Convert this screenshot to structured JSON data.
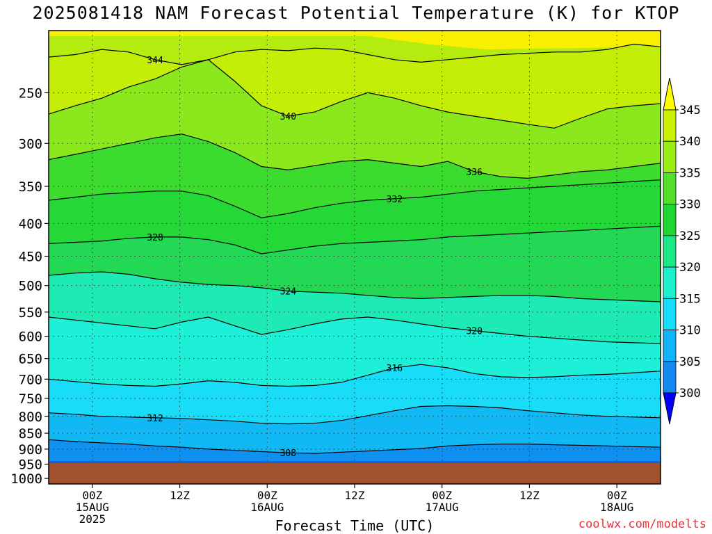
{
  "title": "2025081418 NAM Forecast Potential Temperature (K) for KTOP",
  "xaxis_title": "Forecast Time (UTC)",
  "credit": "coolwx.com/modelts",
  "chart_data": {
    "type": "contour",
    "title": "2025081418 NAM Forecast Potential Temperature (K) for KTOP",
    "xlabel": "Forecast Time (UTC)",
    "ylabel": "",
    "x_ticks": [
      {
        "hour": 6,
        "label": [
          "00Z",
          "15AUG",
          "2025"
        ]
      },
      {
        "hour": 18,
        "label": [
          "12Z"
        ]
      },
      {
        "hour": 30,
        "label": [
          "00Z",
          "16AUG"
        ]
      },
      {
        "hour": 42,
        "label": [
          "12Z"
        ]
      },
      {
        "hour": 54,
        "label": [
          "00Z",
          "17AUG"
        ]
      },
      {
        "hour": 66,
        "label": [
          "12Z"
        ]
      },
      {
        "hour": 78,
        "label": [
          "00Z",
          "18AUG"
        ]
      }
    ],
    "x_range_hours": [
      0,
      84
    ],
    "y_ticks": [
      250,
      300,
      350,
      400,
      450,
      500,
      550,
      600,
      650,
      700,
      750,
      800,
      850,
      900,
      950,
      1000
    ],
    "y_range_hPa": [
      200,
      1020
    ],
    "grid": true,
    "colorbar": {
      "labels": [
        345,
        340,
        335,
        330,
        325,
        320,
        315,
        310,
        305,
        300
      ],
      "colors": [
        "#ffff00",
        "#c8f000",
        "#9cec16",
        "#55e02a",
        "#21d832",
        "#1de888",
        "#1cf0cc",
        "#18dcfc",
        "#10b4f8",
        "#1288f0",
        "#0a5ae4",
        "#0000ff"
      ]
    },
    "levels": [
      {
        "theta": 344,
        "p": [
          220,
          218,
          214,
          216,
          222,
          226,
          222,
          216,
          214,
          215,
          213,
          214,
          218,
          222,
          224,
          222,
          220,
          218,
          217,
          216,
          216,
          214,
          210,
          212
        ]
      },
      {
        "theta": 340,
        "p": [
          270,
          262,
          255,
          245,
          238,
          228,
          222,
          240,
          262,
          272,
          268,
          258,
          250,
          255,
          262,
          268,
          272,
          276,
          280,
          284,
          274,
          265,
          262,
          260
        ]
      },
      {
        "theta": 336,
        "p": [
          318,
          312,
          306,
          300,
          294,
          290,
          298,
          310,
          326,
          330,
          325,
          320,
          318,
          322,
          326,
          320,
          332,
          338,
          340,
          336,
          332,
          330,
          326,
          322
        ]
      },
      {
        "theta": 332,
        "p": [
          368,
          364,
          360,
          358,
          356,
          356,
          362,
          376,
          392,
          386,
          378,
          372,
          368,
          366,
          364,
          360,
          356,
          354,
          352,
          350,
          348,
          346,
          344,
          342
        ]
      },
      {
        "theta": 328,
        "p": [
          430,
          428,
          426,
          422,
          420,
          420,
          424,
          432,
          446,
          440,
          434,
          430,
          428,
          426,
          424,
          420,
          418,
          416,
          414,
          412,
          410,
          408,
          406,
          404
        ]
      },
      {
        "theta": 324,
        "p": [
          482,
          478,
          476,
          480,
          488,
          494,
          498,
          500,
          504,
          510,
          512,
          514,
          518,
          522,
          524,
          522,
          520,
          518,
          518,
          520,
          524,
          526,
          528,
          530
        ]
      },
      {
        "theta": 320,
        "p": [
          560,
          566,
          572,
          578,
          584,
          570,
          560,
          578,
          596,
          586,
          574,
          564,
          560,
          566,
          574,
          582,
          588,
          594,
          600,
          604,
          608,
          612,
          614,
          616
        ]
      },
      {
        "theta": 316,
        "p": [
          700,
          706,
          712,
          716,
          718,
          712,
          704,
          708,
          716,
          718,
          716,
          708,
          690,
          672,
          664,
          672,
          686,
          694,
          696,
          694,
          690,
          688,
          684,
          680
        ]
      },
      {
        "theta": 312,
        "p": [
          790,
          794,
          800,
          802,
          804,
          806,
          810,
          814,
          820,
          822,
          820,
          812,
          798,
          784,
          772,
          770,
          772,
          776,
          784,
          790,
          796,
          800,
          802,
          804
        ]
      },
      {
        "theta": 308,
        "p": [
          870,
          876,
          880,
          884,
          890,
          894,
          900,
          904,
          908,
          912,
          914,
          910,
          906,
          902,
          898,
          890,
          886,
          884,
          884,
          886,
          888,
          890,
          892,
          894
        ]
      }
    ]
  }
}
